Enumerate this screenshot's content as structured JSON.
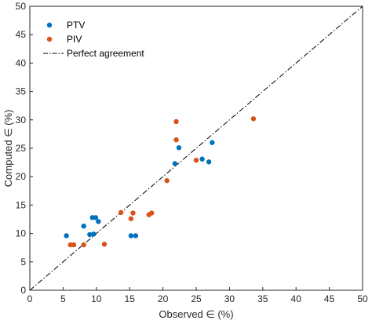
{
  "chart_data": {
    "type": "scatter",
    "xlabel": "Observed ∈ (%)",
    "ylabel": "Computed ∈ (%)",
    "xlim": [
      0,
      50
    ],
    "ylim": [
      0,
      50
    ],
    "xticks": [
      "0",
      "5",
      "10",
      "15",
      "20",
      "25",
      "30",
      "35",
      "40",
      "45",
      "50"
    ],
    "yticks": [
      "0",
      "5",
      "10",
      "15",
      "20",
      "25",
      "30",
      "35",
      "40",
      "45",
      "50"
    ],
    "grid": false,
    "legend_position": "top-left",
    "series": [
      {
        "name": "PTV",
        "color": "#0072BD",
        "points": [
          [
            5.5,
            9.6
          ],
          [
            8.1,
            11.3
          ],
          [
            9.0,
            9.8
          ],
          [
            9.6,
            9.9
          ],
          [
            9.4,
            12.8
          ],
          [
            9.9,
            12.8
          ],
          [
            10.3,
            12.1
          ],
          [
            15.2,
            9.6
          ],
          [
            15.9,
            9.6
          ],
          [
            21.8,
            22.3
          ],
          [
            22.4,
            25.1
          ],
          [
            25.9,
            23.1
          ],
          [
            26.9,
            22.6
          ],
          [
            27.4,
            26.0
          ]
        ]
      },
      {
        "name": "PIV",
        "color": "#D95319",
        "points": [
          [
            6.1,
            8.0
          ],
          [
            6.6,
            8.0
          ],
          [
            8.1,
            8.0
          ],
          [
            11.2,
            8.1
          ],
          [
            13.7,
            13.7
          ],
          [
            15.2,
            12.6
          ],
          [
            15.5,
            13.6
          ],
          [
            17.9,
            13.3
          ],
          [
            18.3,
            13.6
          ],
          [
            20.6,
            19.3
          ],
          [
            22.0,
            26.5
          ],
          [
            22.0,
            29.7
          ],
          [
            25.0,
            22.9
          ],
          [
            33.6,
            30.2
          ]
        ]
      },
      {
        "name": "Perfect agreement",
        "color": "#000000",
        "style": "dash-dot",
        "line": [
          [
            0,
            0
          ],
          [
            50,
            50
          ]
        ]
      }
    ]
  }
}
